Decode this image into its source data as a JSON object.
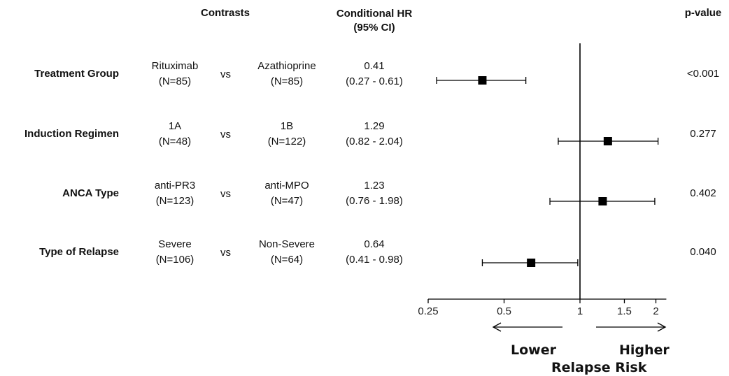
{
  "headers": {
    "contrasts": "Contrasts",
    "hr_line1": "Conditional HR",
    "hr_line2": "(95% CI)",
    "pvalue": "p-value"
  },
  "rows": [
    {
      "label": "Treatment Group",
      "group_a": "Rituximab",
      "n_a": "(N=85)",
      "vs": "vs",
      "group_b": "Azathioprine",
      "n_b": "(N=85)",
      "hr": "0.41",
      "ci": "(0.27 - 0.61)",
      "p": "<0.001"
    },
    {
      "label": "Induction Regimen",
      "group_a": "1A",
      "n_a": "(N=48)",
      "vs": "vs",
      "group_b": "1B",
      "n_b": "(N=122)",
      "hr": "1.29",
      "ci": "(0.82 - 2.04)",
      "p": "0.277"
    },
    {
      "label": "ANCA Type",
      "group_a": "anti-PR3",
      "n_a": "(N=123)",
      "vs": "vs",
      "group_b": "anti-MPO",
      "n_b": "(N=47)",
      "hr": "1.23",
      "ci": "(0.76 - 1.98)",
      "p": "0.402"
    },
    {
      "label": "Type of Relapse",
      "group_a": "Severe",
      "n_a": "(N=106)",
      "vs": "vs",
      "group_b": "Non-Severe",
      "n_b": "(N=64)",
      "hr": "0.64",
      "ci": "(0.41 - 0.98)",
      "p": "0.040"
    }
  ],
  "axis_labels": {
    "lower": "Lower",
    "higher": "Higher",
    "title": "Relapse Risk"
  },
  "chart_data": {
    "type": "scatter",
    "scale": "log",
    "xlim": [
      0.25,
      2.2
    ],
    "reference_line": 1,
    "ticks": [
      {
        "value": 0.25,
        "label": "0.25"
      },
      {
        "value": 0.5,
        "label": "0.5"
      },
      {
        "value": 1,
        "label": "1"
      },
      {
        "value": 1.5,
        "label": "1.5"
      },
      {
        "value": 2,
        "label": "2"
      }
    ],
    "points": [
      {
        "category": "Treatment Group",
        "hr": 0.41,
        "lo": 0.27,
        "hi": 0.61
      },
      {
        "category": "Induction Regimen",
        "hr": 1.29,
        "lo": 0.82,
        "hi": 2.04
      },
      {
        "category": "ANCA Type",
        "hr": 1.23,
        "lo": 0.76,
        "hi": 1.98
      },
      {
        "category": "Type of Relapse",
        "hr": 0.64,
        "lo": 0.41,
        "hi": 0.98
      }
    ],
    "color": "#000000"
  }
}
